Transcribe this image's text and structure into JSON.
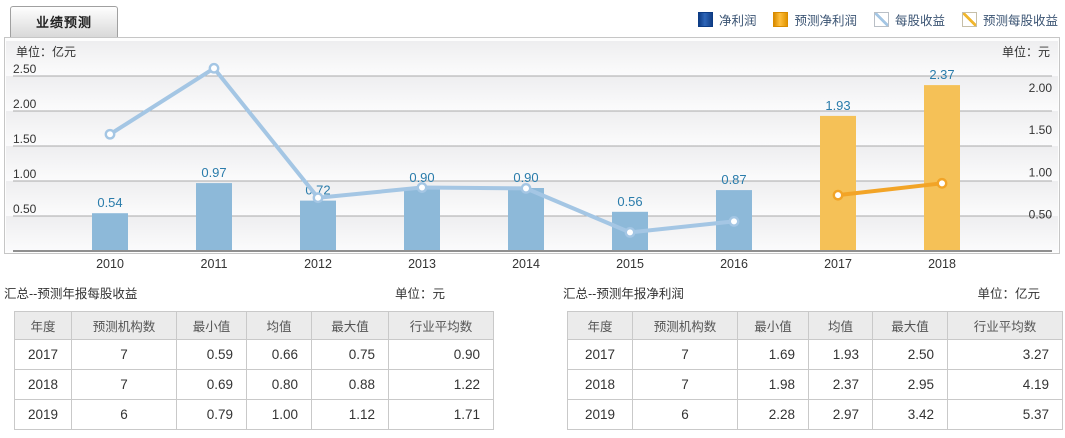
{
  "tab": {
    "label": "业绩预测"
  },
  "legend": {
    "items": [
      {
        "label": "净利润",
        "swatch": "solid-blue"
      },
      {
        "label": "预测净利润",
        "swatch": "solid-orange"
      },
      {
        "label": "每股收益",
        "swatch": "hatch-blue"
      },
      {
        "label": "预测每股收益",
        "swatch": "hatch-orange"
      }
    ]
  },
  "colors": {
    "bar_blue": "#8db9d9",
    "bar_orange": "#f5c157",
    "line_blue": "#a4c6e4",
    "line_orange": "#f2a427",
    "value_label": "#2a7cab",
    "grid": "#aaaaaa",
    "axis": "#8f8f8f",
    "tick_text": "#333333"
  },
  "chart_data": {
    "type": "bar+line dual-axis",
    "left_axis": {
      "unit": "单位：亿元",
      "ticks": [
        "2.50",
        "2.00",
        "1.50",
        "1.00",
        "0.50"
      ],
      "tick_values": [
        2.5,
        2.0,
        1.5,
        1.0,
        0.5
      ],
      "min": 0
    },
    "right_axis": {
      "unit": "单位：元",
      "ticks": [
        "2.00",
        "1.50",
        "1.00",
        "0.50"
      ],
      "tick_values": [
        2.0,
        1.5,
        1.0,
        0.5
      ],
      "min": 0
    },
    "categories": [
      "2010",
      "2011",
      "2012",
      "2013",
      "2014",
      "2015",
      "2016",
      "2017",
      "2018"
    ],
    "series": [
      {
        "name": "净利润",
        "type": "bar",
        "axis": "left",
        "values": [
          0.54,
          0.97,
          0.72,
          0.9,
          0.9,
          0.56,
          0.87,
          null,
          null
        ],
        "labels": [
          "0.54",
          "0.97",
          "0.72",
          "0.90",
          "0.90",
          "0.56",
          "0.87",
          null,
          null
        ]
      },
      {
        "name": "预测净利润",
        "type": "bar",
        "axis": "left",
        "values": [
          null,
          null,
          null,
          null,
          null,
          null,
          null,
          1.93,
          2.37
        ],
        "labels": [
          null,
          null,
          null,
          null,
          null,
          null,
          null,
          "1.93",
          "2.37"
        ]
      },
      {
        "name": "每股收益",
        "type": "line",
        "axis": "right",
        "values": [
          1.38,
          2.16,
          0.63,
          0.75,
          0.74,
          0.22,
          0.35,
          null,
          null
        ]
      },
      {
        "name": "预测每股收益",
        "type": "line",
        "axis": "right",
        "values": [
          null,
          null,
          null,
          null,
          null,
          null,
          null,
          0.66,
          0.8
        ]
      }
    ],
    "legend_position": "top-right",
    "grid": true
  },
  "sections": {
    "left": {
      "title": "汇总--预测年报每股收益",
      "unit": "单位：元"
    },
    "right": {
      "title": "汇总--预测年报净利润",
      "unit": "单位：亿元"
    }
  },
  "tables": {
    "left": {
      "headers": [
        "年度",
        "预测机构数",
        "最小值",
        "均值",
        "最大值",
        "行业平均数"
      ],
      "rows": [
        [
          "2017",
          "7",
          "0.59",
          "0.66",
          "0.75",
          "0.90"
        ],
        [
          "2018",
          "7",
          "0.69",
          "0.80",
          "0.88",
          "1.22"
        ],
        [
          "2019",
          "6",
          "0.79",
          "1.00",
          "1.12",
          "1.71"
        ]
      ]
    },
    "right": {
      "headers": [
        "年度",
        "预测机构数",
        "最小值",
        "均值",
        "最大值",
        "行业平均数"
      ],
      "rows": [
        [
          "2017",
          "7",
          "1.69",
          "1.93",
          "2.50",
          "3.27"
        ],
        [
          "2018",
          "7",
          "1.98",
          "2.37",
          "2.95",
          "4.19"
        ],
        [
          "2019",
          "6",
          "2.28",
          "2.97",
          "3.42",
          "5.37"
        ]
      ]
    }
  }
}
